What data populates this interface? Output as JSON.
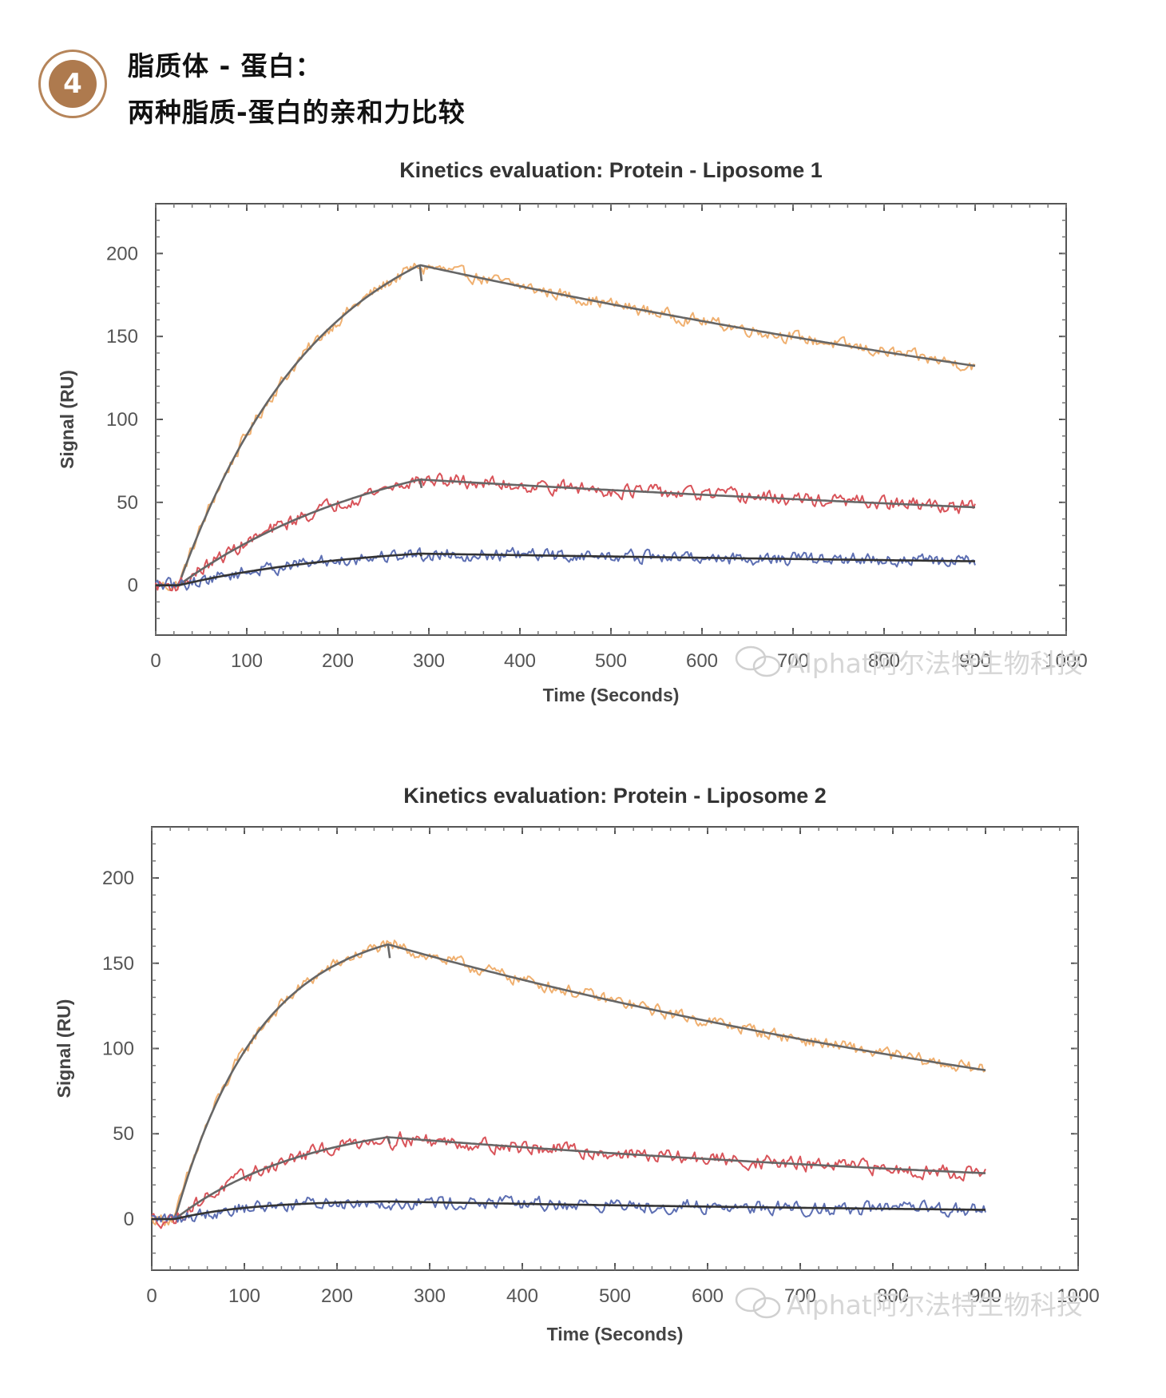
{
  "header": {
    "badge_number": "4",
    "title_line1": "脂质体 - 蛋白：",
    "title_line2": "两种脂质-蛋白的亲和力比较",
    "badge_color": "#ae7a4e"
  },
  "watermark": {
    "text": "Alphat阿尔法特生物科技",
    "icon": "wechat-icon"
  },
  "chart_data": [
    {
      "type": "line",
      "title": "Kinetics evaluation: Protein - Liposome 1",
      "xlabel": "Time (Seconds)",
      "ylabel": "Signal (RU)",
      "xlim": [
        0,
        1000
      ],
      "ylim": [
        -30,
        230
      ],
      "xticks": [
        0,
        100,
        200,
        300,
        400,
        500,
        600,
        700,
        800,
        900,
        1000
      ],
      "yticks": [
        0,
        50,
        100,
        150,
        200
      ],
      "grid": false,
      "legend": "none",
      "injection_start": 25,
      "injection_end": 290,
      "x_end": 900,
      "series": [
        {
          "color": "#f0b070",
          "fit_color": "#666666",
          "rmax": 235,
          "kobs": 0.0065,
          "kd": 0.00062
        },
        {
          "color": "#d9545a",
          "fit_color": "#666666",
          "rmax": 95,
          "kobs": 0.0042,
          "kd": 0.0005
        },
        {
          "color": "#5d6fb3",
          "fit_color": "#333333",
          "rmax": 26,
          "kobs": 0.005,
          "kd": 0.00045
        }
      ]
    },
    {
      "type": "line",
      "title": "Kinetics evaluation: Protein - Liposome 2",
      "xlabel": "Time (Seconds)",
      "ylabel": "Signal (RU)",
      "xlim": [
        0,
        1000
      ],
      "ylim": [
        -30,
        230
      ],
      "xticks": [
        0,
        100,
        200,
        300,
        400,
        500,
        600,
        700,
        800,
        900,
        1000
      ],
      "yticks": [
        0,
        50,
        100,
        150,
        200
      ],
      "grid": false,
      "legend": "none",
      "injection_start": 25,
      "injection_end": 255,
      "x_end": 900,
      "series": [
        {
          "color": "#f0b070",
          "fit_color": "#666666",
          "rmax": 175,
          "kobs": 0.011,
          "kd": 0.00095
        },
        {
          "color": "#d9545a",
          "fit_color": "#666666",
          "rmax": 60,
          "kobs": 0.007,
          "kd": 0.0009
        },
        {
          "color": "#5d6fb3",
          "fit_color": "#333333",
          "rmax": 11,
          "kobs": 0.012,
          "kd": 0.001
        }
      ]
    }
  ]
}
